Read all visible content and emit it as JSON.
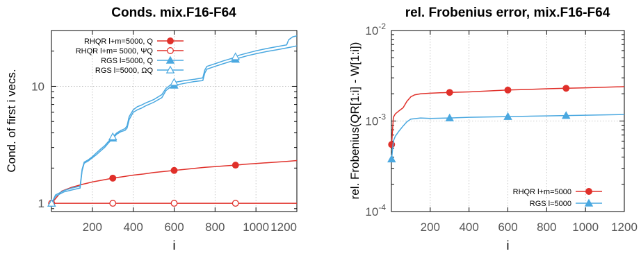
{
  "chart_data": [
    {
      "type": "line",
      "title": "Conds. mix.F16-F64",
      "xlabel": "i",
      "ylabel": "Cond. of first i vecs.",
      "xlim": [
        0,
        1200
      ],
      "ylim": [
        0.85,
        30
      ],
      "yscale": "log",
      "grid": true,
      "legend_position": "top-left",
      "xticks": [
        200,
        400,
        600,
        800,
        1000,
        1200
      ],
      "xtick_labels": [
        "200",
        "400",
        "600",
        "800",
        "1000",
        "1200"
      ],
      "yticks": [
        1,
        10
      ],
      "ytick_labels": [
        "1",
        "10"
      ],
      "series": [
        {
          "name": "RHQR l+m=5000, Q",
          "color": "#e0302a",
          "marker": "filled-circle",
          "x": [
            1,
            50,
            100,
            150,
            200,
            250,
            300,
            350,
            400,
            450,
            500,
            550,
            600,
            650,
            700,
            750,
            800,
            850,
            900,
            950,
            1000,
            1050,
            1100,
            1150,
            1200
          ],
          "y": [
            1.0,
            1.27,
            1.37,
            1.45,
            1.52,
            1.58,
            1.64,
            1.69,
            1.74,
            1.78,
            1.83,
            1.87,
            1.91,
            1.95,
            1.99,
            2.03,
            2.06,
            2.09,
            2.12,
            2.16,
            2.19,
            2.22,
            2.25,
            2.28,
            2.32
          ],
          "marker_x": [
            1,
            300,
            600,
            900
          ]
        },
        {
          "name": "RHQR l+m= 5000, ΨQ",
          "color": "#e0302a",
          "marker": "open-circle",
          "x": [
            1,
            300,
            600,
            900,
            1200
          ],
          "y": [
            1.0,
            1.0,
            1.0,
            1.0,
            1.0
          ],
          "marker_x": [
            1,
            300,
            600,
            900
          ]
        },
        {
          "name": "RGS l=5000, Q",
          "color": "#4aa8e0",
          "marker": "filled-triangle",
          "x": [
            1,
            20,
            60,
            100,
            140,
            150,
            160,
            180,
            200,
            220,
            240,
            260,
            280,
            300,
            320,
            340,
            360,
            370,
            380,
            400,
            420,
            440,
            460,
            500,
            540,
            560,
            580,
            600,
            650,
            700,
            740,
            750,
            760,
            800,
            840,
            880,
            900,
            920,
            960,
            1000,
            1050,
            1100,
            1150,
            1180,
            1200
          ],
          "y": [
            1.0,
            1.15,
            1.25,
            1.3,
            1.35,
            1.9,
            2.2,
            2.3,
            2.45,
            2.6,
            2.8,
            3.0,
            3.3,
            3.6,
            3.9,
            4.1,
            4.2,
            4.4,
            5.2,
            6.0,
            6.3,
            6.5,
            6.8,
            7.3,
            8.0,
            9.2,
            9.8,
            10.2,
            10.6,
            11.0,
            11.2,
            13.0,
            14.0,
            14.8,
            15.6,
            16.4,
            17.0,
            17.5,
            18.3,
            19.0,
            19.8,
            20.5,
            21.3,
            21.8,
            22.2
          ],
          "marker_x": [
            1,
            300,
            600,
            900
          ]
        },
        {
          "name": "RGS l=5000, ΩQ",
          "color": "#4aa8e0",
          "marker": "open-triangle",
          "x": [
            1,
            20,
            60,
            100,
            140,
            150,
            160,
            180,
            200,
            220,
            240,
            260,
            280,
            300,
            320,
            340,
            360,
            370,
            380,
            400,
            420,
            440,
            460,
            500,
            540,
            560,
            580,
            600,
            650,
            700,
            740,
            750,
            760,
            800,
            840,
            880,
            900,
            920,
            960,
            1000,
            1050,
            1100,
            1150,
            1160,
            1180,
            1200
          ],
          "y": [
            1.0,
            1.18,
            1.28,
            1.35,
            1.4,
            1.95,
            2.25,
            2.35,
            2.5,
            2.7,
            2.9,
            3.1,
            3.4,
            3.7,
            4.0,
            4.2,
            4.35,
            4.6,
            5.5,
            6.3,
            6.7,
            6.9,
            7.2,
            7.7,
            8.5,
            9.6,
            10.2,
            10.8,
            11.2,
            11.5,
            11.8,
            13.8,
            14.8,
            15.6,
            16.5,
            17.3,
            17.9,
            18.5,
            19.3,
            20.1,
            21.0,
            21.8,
            22.6,
            25.0,
            26.5,
            27.0
          ],
          "marker_x": [
            1,
            300,
            600,
            900
          ]
        }
      ]
    },
    {
      "type": "line",
      "title": "rel. Frobenius error, mix.F16-F64",
      "xlabel": "i",
      "ylabel": "rel. Frobenius(QR[1:i] - W[1:i])",
      "xlim": [
        0,
        1200
      ],
      "ylim": [
        0.0001,
        0.01
      ],
      "yscale": "log",
      "grid": true,
      "legend_position": "bottom-right",
      "xticks": [
        200,
        400,
        600,
        800,
        1000,
        1200
      ],
      "xtick_labels": [
        "200",
        "400",
        "600",
        "800",
        "1000",
        "1200"
      ],
      "yticks": [
        0.0001,
        0.001,
        0.01
      ],
      "ytick_labels": [
        {
          "base": "10",
          "exp": "-4"
        },
        {
          "base": "10",
          "exp": "-3"
        },
        {
          "base": "10",
          "exp": "-2"
        }
      ],
      "series": [
        {
          "name": "RHQR l+m=5000",
          "color": "#e0302a",
          "marker": "filled-circle",
          "x": [
            1,
            10,
            20,
            40,
            60,
            80,
            100,
            120,
            150,
            200,
            250,
            300,
            400,
            500,
            600,
            700,
            800,
            900,
            1000,
            1100,
            1200
          ],
          "y": [
            0.00055,
            0.0011,
            0.0012,
            0.0013,
            0.0014,
            0.00165,
            0.00185,
            0.00195,
            0.002,
            0.00203,
            0.00205,
            0.00207,
            0.0021,
            0.00215,
            0.0022,
            0.00223,
            0.00227,
            0.0023,
            0.00233,
            0.00236,
            0.0024
          ],
          "marker_x": [
            1,
            300,
            600,
            900
          ]
        },
        {
          "name": "RGS l=5000",
          "color": "#4aa8e0",
          "marker": "filled-triangle",
          "x": [
            1,
            10,
            20,
            40,
            60,
            80,
            100,
            150,
            200,
            300,
            400,
            500,
            600,
            700,
            800,
            900,
            1000,
            1100,
            1200
          ],
          "y": [
            0.00038,
            0.0006,
            0.00068,
            0.00078,
            0.00088,
            0.00098,
            0.00105,
            0.00108,
            0.00107,
            0.00108,
            0.0011,
            0.00111,
            0.00112,
            0.00113,
            0.00114,
            0.00115,
            0.00116,
            0.00117,
            0.00118
          ],
          "marker_x": [
            1,
            300,
            600,
            900
          ]
        }
      ]
    }
  ]
}
